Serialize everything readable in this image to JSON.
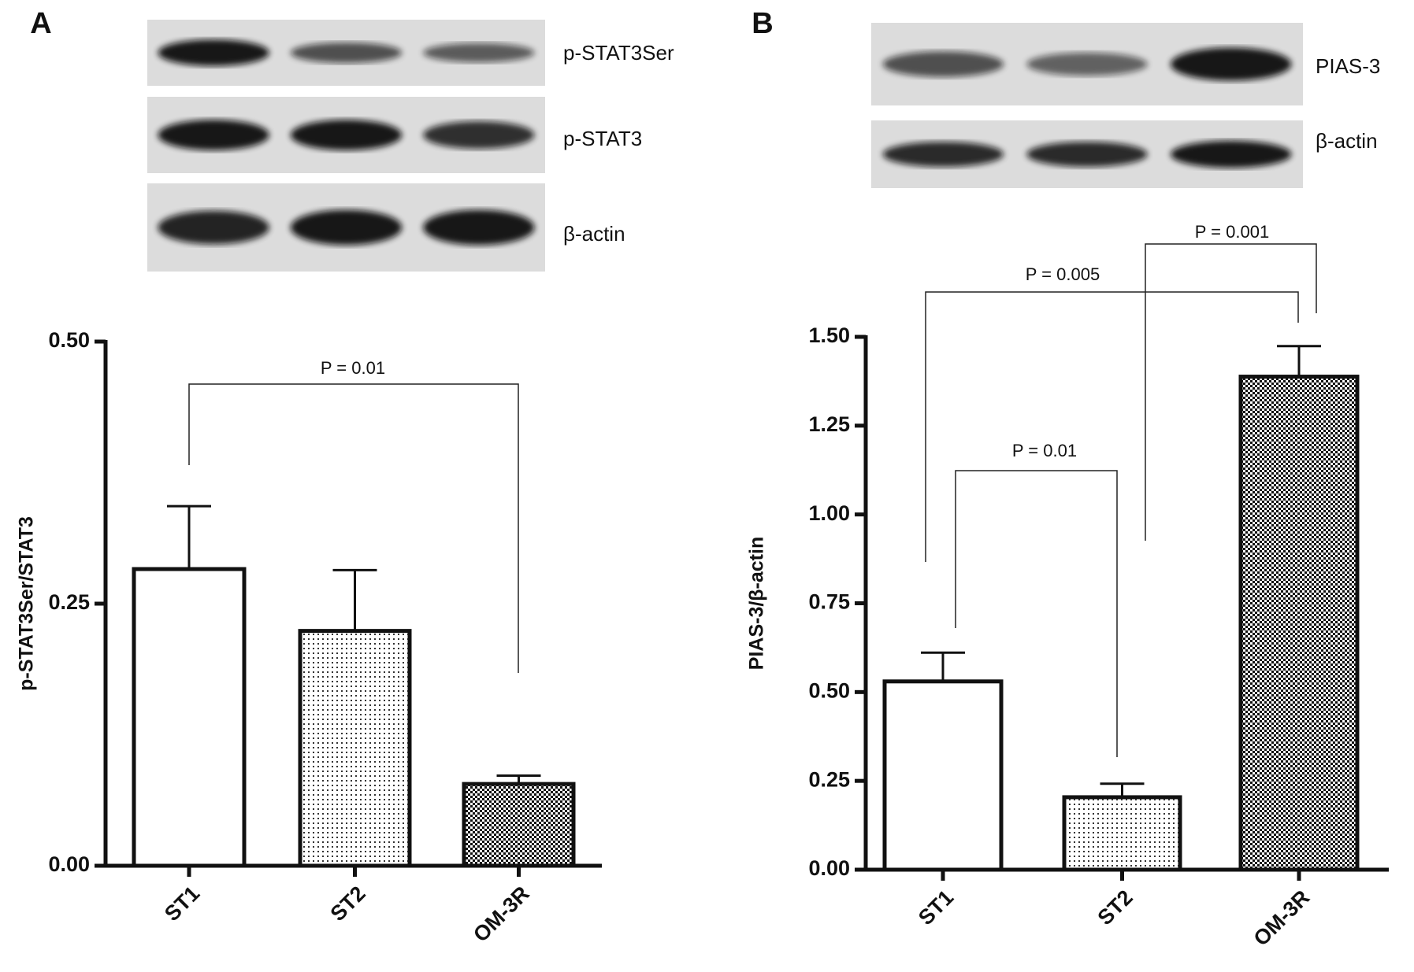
{
  "chart_data": [
    {
      "type": "bar",
      "panel": "A",
      "ylabel": "p-STAT3Ser/STAT3",
      "categories": [
        "ST1",
        "ST2",
        "OM-3R"
      ],
      "values": [
        0.283,
        0.224,
        0.078
      ],
      "errors": [
        0.06,
        0.058,
        0.008
      ],
      "ylim": [
        0,
        0.5
      ],
      "yticks": [
        {
          "value": 0,
          "label": "0.00"
        },
        {
          "value": 0.25,
          "label": "0.25"
        },
        {
          "value": 0.5,
          "label": "0.50"
        }
      ],
      "annotations": [
        "P = 0.01"
      ],
      "blots": [
        "p-STAT3Ser",
        "p-STAT3",
        "β-actin"
      ]
    },
    {
      "type": "bar",
      "panel": "B",
      "ylabel": "PIAS-3/β-actin",
      "categories": [
        "ST1",
        "ST2",
        "OM-3R"
      ],
      "values": [
        0.53,
        0.204,
        1.388
      ],
      "errors": [
        0.081,
        0.038,
        0.086
      ],
      "ylim": [
        0,
        1.5
      ],
      "yticks": [
        {
          "value": 0,
          "label": "0.00"
        },
        {
          "value": 0.25,
          "label": "0.25"
        },
        {
          "value": 0.5,
          "label": "0.50"
        },
        {
          "value": 0.75,
          "label": "0.75"
        },
        {
          "value": 1,
          "label": "1.00"
        },
        {
          "value": 1.25,
          "label": "1.25"
        },
        {
          "value": 1.5,
          "label": "1.50"
        }
      ],
      "annotations": [
        "P = 0.01",
        "P = 0.005",
        "P = 0.001"
      ],
      "blots": [
        "PIAS-3",
        "β-actin"
      ]
    }
  ]
}
